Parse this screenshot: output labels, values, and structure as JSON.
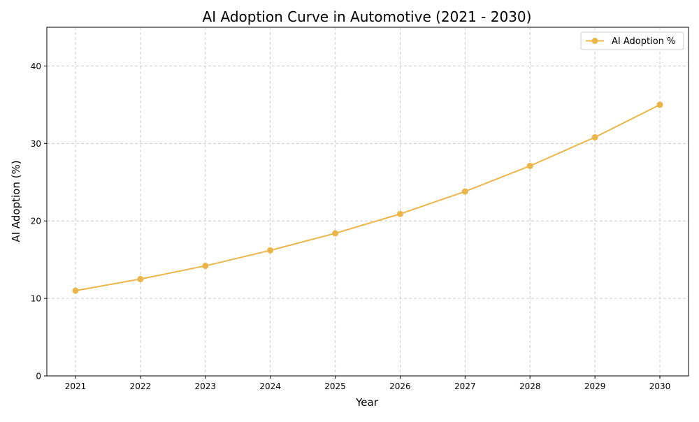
{
  "chart_data": {
    "type": "line",
    "title": "AI Adoption Curve in Automotive (2021 - 2030)",
    "xlabel": "Year",
    "ylabel": "AI Adoption (%)",
    "x": [
      "2021",
      "2022",
      "2023",
      "2024",
      "2025",
      "2026",
      "2027",
      "2028",
      "2029",
      "2030"
    ],
    "ylim": [
      0,
      45
    ],
    "yticks": [
      0,
      10,
      20,
      30,
      40
    ],
    "grid": true,
    "legend_position": "top-right",
    "series": [
      {
        "name": "AI Adoption %",
        "color": "#EBB54A",
        "marker": "circle",
        "values": [
          11.0,
          12.5,
          14.2,
          16.2,
          18.4,
          20.9,
          23.8,
          27.1,
          30.8,
          35.0
        ]
      }
    ]
  }
}
